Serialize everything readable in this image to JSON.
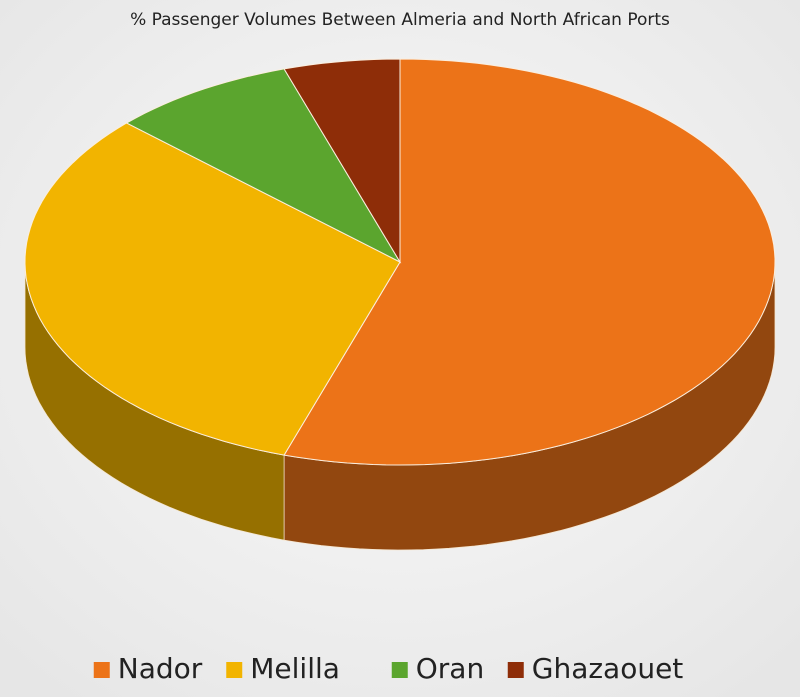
{
  "chart_data": {
    "type": "pie3d",
    "title": "% Passenger Volumes Between Almeria and North African Ports",
    "categories": [
      "Nador",
      "Melilla",
      "Oran",
      "Ghazaouet"
    ],
    "values": [
      55,
      32,
      8,
      5
    ],
    "colors": [
      "#ec7318",
      "#f2b400",
      "#5ba52e",
      "#8e2d08"
    ],
    "legend": "bottom"
  }
}
